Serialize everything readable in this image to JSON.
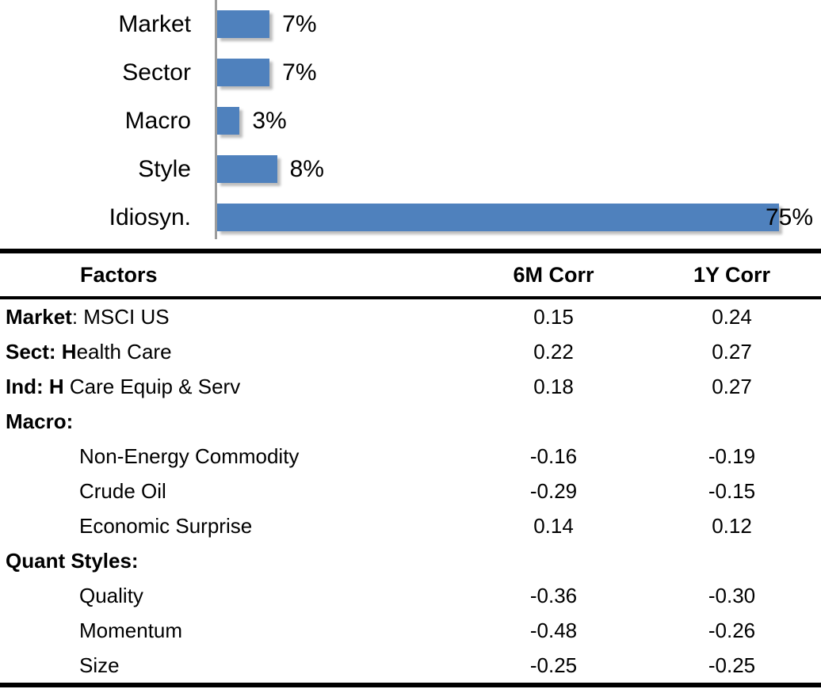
{
  "chart_data": [
    {
      "type": "bar",
      "orientation": "horizontal",
      "title": "",
      "categories": [
        "Market",
        "Sector",
        "Macro",
        "Style",
        "Idiosyn."
      ],
      "values": [
        7,
        7,
        3,
        8,
        75
      ],
      "value_labels": [
        "7%",
        "7%",
        "3%",
        "8%",
        "75%"
      ],
      "xlim": [
        0,
        80
      ],
      "grid": false,
      "legend": false,
      "bar_color": "#4F81BD",
      "axis_color": "#9C9C9C"
    },
    {
      "type": "table",
      "columns": [
        "Factors",
        "6M Corr",
        "1Y Corr"
      ],
      "rows": [
        {
          "bold": "Market",
          "text": ": MSCI US",
          "indent": false,
          "corr_6m": "0.15",
          "corr_1y": "0.24"
        },
        {
          "bold": "Sect: H",
          "text": "ealth Care",
          "indent": false,
          "corr_6m": "0.22",
          "corr_1y": "0.27"
        },
        {
          "bold": "Ind: H",
          "text": " Care Equip & Serv",
          "indent": false,
          "corr_6m": "0.18",
          "corr_1y": "0.27"
        },
        {
          "bold": "Macro:",
          "text": "",
          "indent": false,
          "corr_6m": "",
          "corr_1y": ""
        },
        {
          "bold": "",
          "text": "Non-Energy Commodity",
          "indent": true,
          "corr_6m": "-0.16",
          "corr_1y": "-0.19"
        },
        {
          "bold": "",
          "text": "Crude Oil",
          "indent": true,
          "corr_6m": "-0.29",
          "corr_1y": "-0.15"
        },
        {
          "bold": "",
          "text": "Economic Surprise",
          "indent": true,
          "corr_6m": "0.14",
          "corr_1y": "0.12"
        },
        {
          "bold": "Quant Styles:",
          "text": "",
          "indent": false,
          "corr_6m": "",
          "corr_1y": ""
        },
        {
          "bold": "",
          "text": "Quality",
          "indent": true,
          "corr_6m": "-0.36",
          "corr_1y": "-0.30"
        },
        {
          "bold": "",
          "text": "Momentum",
          "indent": true,
          "corr_6m": "-0.48",
          "corr_1y": "-0.26"
        },
        {
          "bold": "",
          "text": "Size",
          "indent": true,
          "corr_6m": "-0.25",
          "corr_1y": "-0.25"
        }
      ]
    }
  ]
}
